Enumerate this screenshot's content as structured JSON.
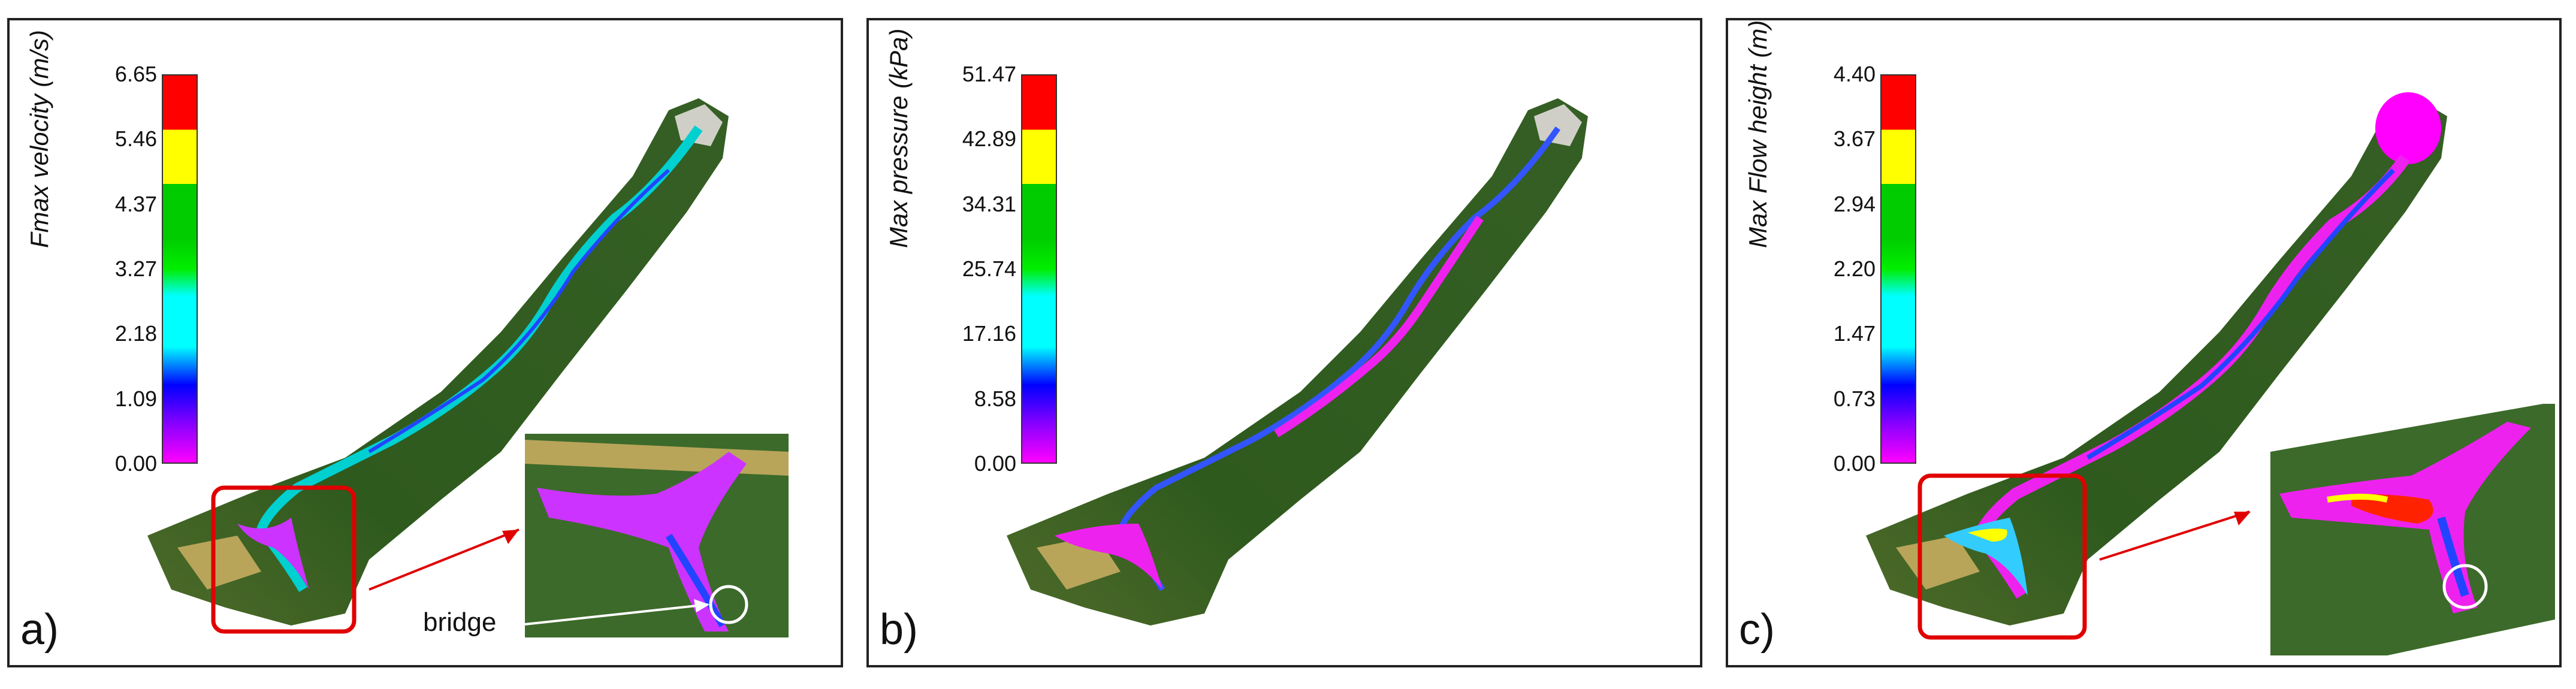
{
  "panels": [
    {
      "letter": "a)",
      "legend": {
        "title": "Fmax velocity (m/s)",
        "ticks": [
          "6.65",
          "5.46",
          "4.37",
          "3.27",
          "2.18",
          "1.09",
          "0.00"
        ]
      },
      "callout_label": "bridge"
    },
    {
      "letter": "b)",
      "legend": {
        "title": "Max pressure (kPa)",
        "ticks": [
          "51.47",
          "42.89",
          "34.31",
          "25.74",
          "17.16",
          "8.58",
          "0.00"
        ]
      }
    },
    {
      "letter": "c)",
      "legend": {
        "title": "Max Flow height (m)",
        "ticks": [
          "4.40",
          "3.67",
          "2.94",
          "2.20",
          "1.47",
          "0.73",
          "0.00"
        ]
      }
    }
  ],
  "colors": {
    "scale": [
      "#ff0000",
      "#ffff00",
      "#00cc00",
      "#00ffff",
      "#0000ff",
      "#ff00ff"
    ],
    "vegetation": "#2f5a1e",
    "highlight_box": "#e00000",
    "arrow": "#e00000"
  }
}
